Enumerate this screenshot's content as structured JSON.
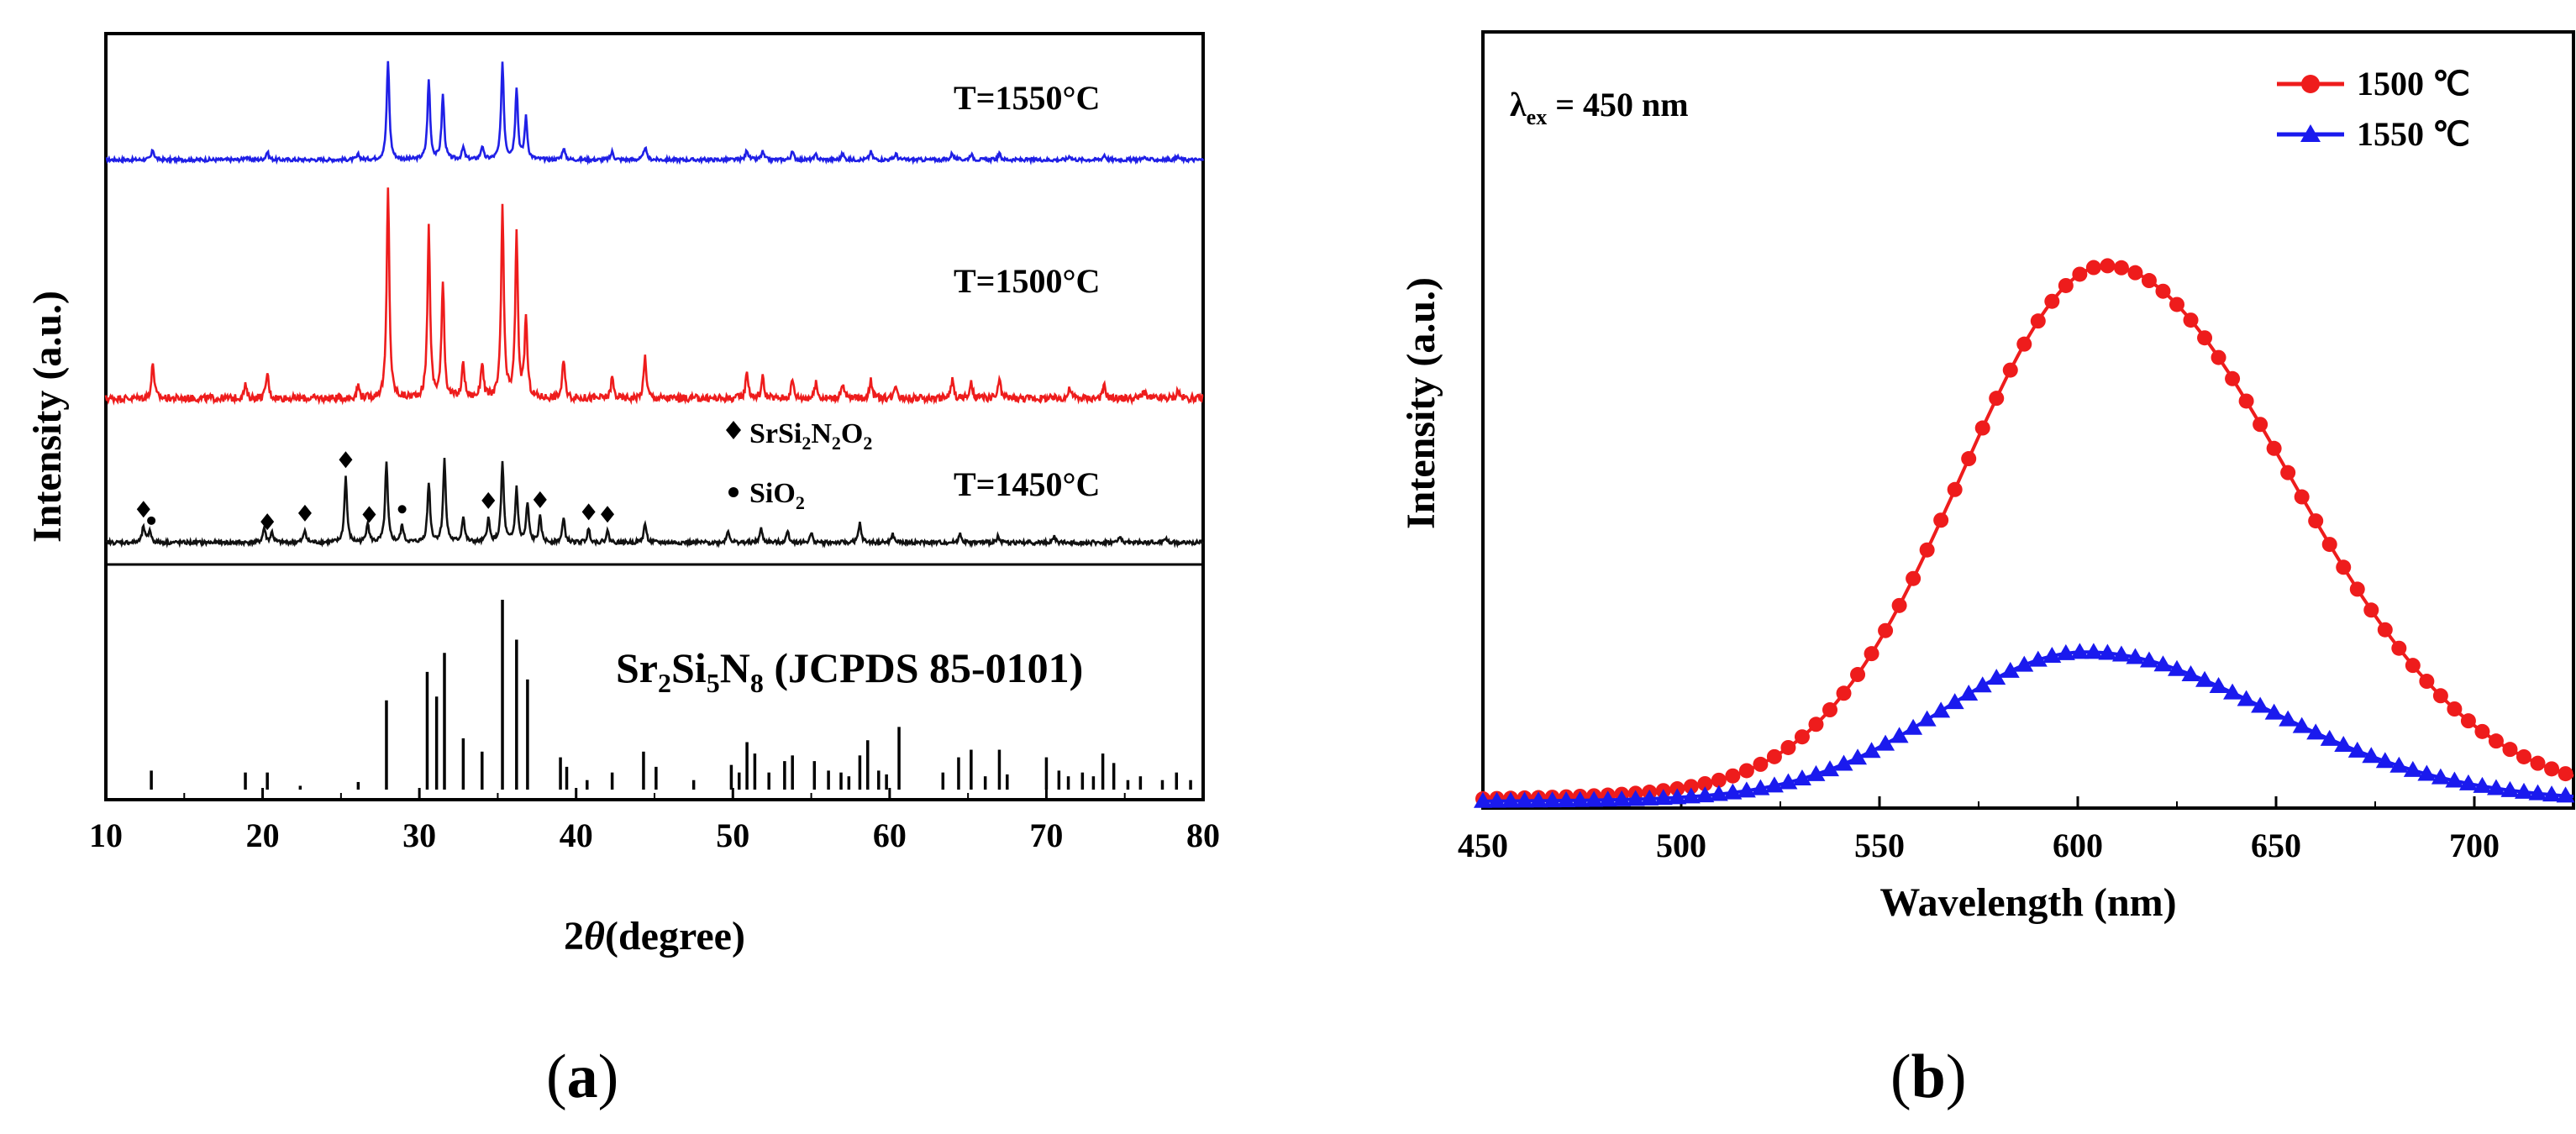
{
  "captions": {
    "a": "a",
    "b": "b"
  },
  "chart_data": [
    {
      "type": "line",
      "panel": "a",
      "xlabel": "2θ (degree)",
      "xlabel_sym": "2",
      "xlabel_theta": "θ",
      "xlabel_rest": "(degree)",
      "ylabel": "Intensity (a.u.)",
      "xlim": [
        10,
        80
      ],
      "xticks": [
        10,
        20,
        30,
        40,
        50,
        60,
        70,
        80
      ],
      "series": [
        {
          "name": "T=1550°C",
          "color": "#1f1fe6",
          "peaks": [
            [
              13.0,
              0.1
            ],
            [
              18.9,
              0.03
            ],
            [
              20.3,
              0.08
            ],
            [
              26.1,
              0.05
            ],
            [
              28.0,
              1.0
            ],
            [
              30.6,
              0.8
            ],
            [
              31.5,
              0.65
            ],
            [
              32.8,
              0.12
            ],
            [
              34.0,
              0.13
            ],
            [
              35.3,
              0.98
            ],
            [
              36.2,
              0.72
            ],
            [
              36.8,
              0.42
            ],
            [
              39.2,
              0.12
            ],
            [
              42.3,
              0.08
            ],
            [
              44.4,
              0.13
            ],
            [
              50.9,
              0.1
            ],
            [
              51.9,
              0.08
            ],
            [
              53.8,
              0.08
            ],
            [
              55.3,
              0.05
            ],
            [
              57.0,
              0.06
            ],
            [
              58.8,
              0.08
            ],
            [
              60.4,
              0.06
            ],
            [
              64.0,
              0.07
            ],
            [
              65.2,
              0.06
            ],
            [
              67.0,
              0.06
            ],
            [
              71.5,
              0.04
            ],
            [
              73.7,
              0.05
            ],
            [
              76.2,
              0.03
            ],
            [
              78.4,
              0.03
            ]
          ]
        },
        {
          "name": "T=1500°C",
          "color": "#ee1c1c",
          "peaks": [
            [
              13.0,
              0.17
            ],
            [
              18.9,
              0.06
            ],
            [
              20.3,
              0.12
            ],
            [
              26.1,
              0.06
            ],
            [
              28.0,
              1.0
            ],
            [
              30.6,
              0.81
            ],
            [
              31.5,
              0.56
            ],
            [
              32.8,
              0.17
            ],
            [
              34.0,
              0.17
            ],
            [
              35.3,
              0.91
            ],
            [
              36.2,
              0.77
            ],
            [
              36.8,
              0.38
            ],
            [
              39.2,
              0.18
            ],
            [
              42.3,
              0.1
            ],
            [
              44.4,
              0.2
            ],
            [
              50.9,
              0.13
            ],
            [
              51.9,
              0.1
            ],
            [
              53.8,
              0.09
            ],
            [
              55.3,
              0.07
            ],
            [
              57.0,
              0.07
            ],
            [
              58.8,
              0.09
            ],
            [
              60.4,
              0.07
            ],
            [
              64.0,
              0.09
            ],
            [
              65.2,
              0.07
            ],
            [
              67.0,
              0.09
            ],
            [
              71.5,
              0.05
            ],
            [
              73.7,
              0.06
            ],
            [
              76.2,
              0.04
            ],
            [
              78.4,
              0.04
            ]
          ]
        },
        {
          "name": "T=1450°C",
          "color": "#111111",
          "peaks": [
            [
              12.4,
              0.14
            ],
            [
              12.8,
              0.11
            ],
            [
              20.1,
              0.13
            ],
            [
              20.6,
              0.09
            ],
            [
              22.7,
              0.11
            ],
            [
              25.3,
              0.58
            ],
            [
              26.7,
              0.18
            ],
            [
              27.9,
              0.7
            ],
            [
              28.9,
              0.15
            ],
            [
              30.6,
              0.53
            ],
            [
              31.6,
              0.73
            ],
            [
              32.8,
              0.23
            ],
            [
              34.4,
              0.21
            ],
            [
              35.3,
              0.7
            ],
            [
              36.2,
              0.48
            ],
            [
              36.9,
              0.34
            ],
            [
              37.7,
              0.22
            ],
            [
              39.2,
              0.21
            ],
            [
              40.8,
              0.12
            ],
            [
              42.0,
              0.1
            ],
            [
              44.4,
              0.17
            ],
            [
              49.7,
              0.11
            ],
            [
              51.8,
              0.12
            ],
            [
              53.5,
              0.1
            ],
            [
              55.0,
              0.08
            ],
            [
              58.1,
              0.17
            ],
            [
              60.2,
              0.07
            ],
            [
              64.5,
              0.08
            ],
            [
              66.9,
              0.06
            ],
            [
              70.5,
              0.05
            ],
            [
              74.7,
              0.05
            ],
            [
              77.6,
              0.04
            ]
          ]
        }
      ],
      "trace_labels": [
        "T=1550°C",
        "T=1500°C",
        "T=1450°C"
      ],
      "legend": {
        "diamond": {
          "base": "SrSi",
          "s1": "2",
          "mid": "N",
          "s2": "2",
          "end": "O",
          "s3": "2"
        },
        "dot": {
          "base": "SiO",
          "s1": "2"
        }
      },
      "diamond_markers": [
        12.4,
        20.3,
        22.7,
        25.3,
        26.8,
        34.4,
        37.7,
        40.8,
        42.0
      ],
      "dot_markers": [
        12.9,
        28.9
      ],
      "reference": {
        "label": {
          "sr": "Sr",
          "s1": "2",
          "si": "Si",
          "s2": "5",
          "n": "N",
          "s3": "8",
          "rest": " (JCPDS 85-0101)"
        },
        "lines": [
          [
            12.9,
            0.1
          ],
          [
            18.9,
            0.09
          ],
          [
            20.3,
            0.09
          ],
          [
            22.4,
            0.02
          ],
          [
            26.1,
            0.04
          ],
          [
            27.9,
            0.47
          ],
          [
            30.5,
            0.62
          ],
          [
            31.1,
            0.49
          ],
          [
            31.6,
            0.72
          ],
          [
            32.8,
            0.27
          ],
          [
            34.0,
            0.2
          ],
          [
            35.3,
            1.0
          ],
          [
            36.2,
            0.79
          ],
          [
            36.9,
            0.58
          ],
          [
            39.0,
            0.17
          ],
          [
            39.4,
            0.12
          ],
          [
            40.7,
            0.05
          ],
          [
            42.3,
            0.09
          ],
          [
            44.3,
            0.2
          ],
          [
            45.1,
            0.12
          ],
          [
            47.5,
            0.05
          ],
          [
            49.9,
            0.13
          ],
          [
            50.4,
            0.09
          ],
          [
            50.9,
            0.25
          ],
          [
            51.4,
            0.19
          ],
          [
            52.3,
            0.09
          ],
          [
            53.3,
            0.15
          ],
          [
            53.8,
            0.18
          ],
          [
            55.2,
            0.15
          ],
          [
            56.1,
            0.1
          ],
          [
            56.9,
            0.09
          ],
          [
            57.4,
            0.07
          ],
          [
            58.1,
            0.18
          ],
          [
            58.6,
            0.26
          ],
          [
            59.3,
            0.1
          ],
          [
            59.8,
            0.08
          ],
          [
            60.6,
            0.33
          ],
          [
            63.4,
            0.09
          ],
          [
            64.4,
            0.17
          ],
          [
            65.2,
            0.21
          ],
          [
            66.1,
            0.07
          ],
          [
            67.0,
            0.21
          ],
          [
            67.5,
            0.08
          ],
          [
            70.0,
            0.17
          ],
          [
            70.8,
            0.1
          ],
          [
            71.4,
            0.07
          ],
          [
            72.3,
            0.09
          ],
          [
            73.0,
            0.07
          ],
          [
            73.6,
            0.19
          ],
          [
            74.3,
            0.14
          ],
          [
            75.2,
            0.05
          ],
          [
            76.0,
            0.07
          ],
          [
            77.4,
            0.05
          ],
          [
            78.3,
            0.09
          ],
          [
            79.2,
            0.05
          ]
        ]
      }
    },
    {
      "type": "line",
      "panel": "b",
      "xlabel": "Wavelength (nm)",
      "ylabel": "Intensity (a.u.)",
      "xlim": [
        450,
        725
      ],
      "xticks": [
        450,
        500,
        550,
        600,
        650,
        700
      ],
      "annotation": {
        "lambda": "λ",
        "sub": "ex",
        "rest": " = 450 nm"
      },
      "series": [
        {
          "name": "1500 ℃",
          "color": "#ee1c1c",
          "marker": "circle",
          "peak_x": 607,
          "peak": 1.0
        },
        {
          "name": "1550 ℃",
          "color": "#1a1aee",
          "marker": "triangle",
          "peak_x": 602,
          "peak": 0.28
        }
      ]
    }
  ]
}
